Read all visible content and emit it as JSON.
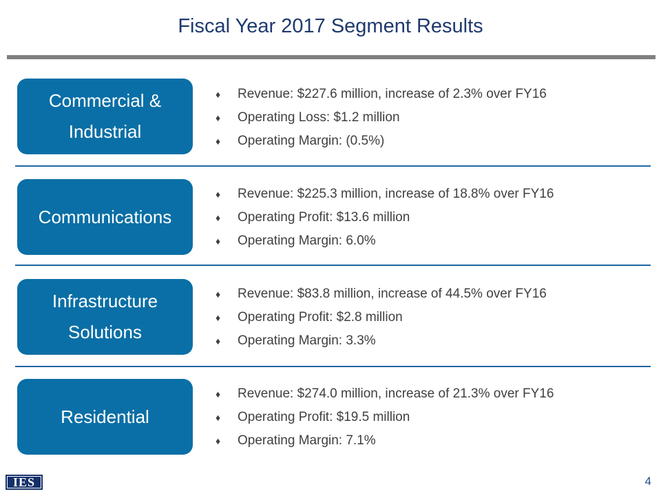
{
  "title": "Fiscal Year 2017 Segment Results",
  "segments": [
    {
      "name": "Commercial & Industrial",
      "bullets": [
        "Revenue: $227.6 million, increase of 2.3% over FY16",
        "Operating Loss: $1.2 million",
        "Operating Margin: (0.5%)"
      ]
    },
    {
      "name": "Communications",
      "bullets": [
        "Revenue: $225.3 million, increase of 18.8% over FY16",
        "Operating Profit: $13.6 million",
        "Operating Margin: 6.0%"
      ]
    },
    {
      "name": "Infrastructure Solutions",
      "bullets": [
        "Revenue: $83.8 million, increase of 44.5% over FY16",
        "Operating Profit: $2.8 million",
        "Operating Margin: 3.3%"
      ]
    },
    {
      "name": "Residential",
      "bullets": [
        "Revenue: $274.0 million, increase of 21.3% over FY16",
        "Operating Profit: $19.5 million",
        "Operating Margin: 7.1%"
      ]
    }
  ],
  "bullet_icon": "diamond-icon",
  "logo": "IES",
  "page_number": "4",
  "colors": {
    "title": "#1f3a6e",
    "segment_box": "#0a6fa6",
    "separator": "#1e66a0",
    "title_rule": "#808080",
    "logo_bg": "#14306a"
  }
}
